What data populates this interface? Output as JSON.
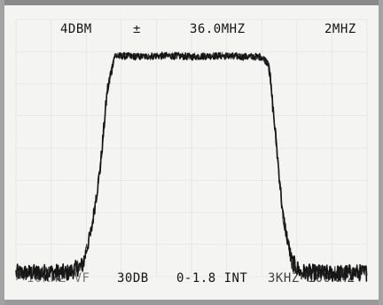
{
  "readouts": {
    "top_left": "4DBM",
    "top_marker": "±",
    "top_center": "36.0MHZ",
    "top_right": "2MHZ",
    "bottom_left": "10KHZ VF",
    "bottom_center_left": "30DB",
    "bottom_center": "0-1.8 INT",
    "bottom_right": "3KHZ 100KHZ"
  },
  "chart_data": {
    "type": "line",
    "title": "",
    "xlabel": "",
    "ylabel": "",
    "center_frequency_mhz": 36.0,
    "span_per_division_mhz": 2,
    "reference_level_dbm": 4,
    "scale_total_db": 30,
    "xlim": [
      26.0,
      46.0
    ],
    "ylim": [
      -30,
      0
    ],
    "grid": true,
    "series": [
      {
        "name": "",
        "x_mhz": [
          26.0,
          27.0,
          28.0,
          29.0,
          29.8,
          30.3,
          30.8,
          31.2,
          31.6,
          32.0,
          33.0,
          34.0,
          35.0,
          36.0,
          37.0,
          38.0,
          39.0,
          40.0,
          40.4,
          40.8,
          41.2,
          41.7,
          42.2,
          43.0,
          44.0,
          45.0,
          46.0
        ],
        "level_db": [
          -29.5,
          -29.5,
          -29.4,
          -29.5,
          -28.5,
          -24.0,
          -16.0,
          -6.0,
          -1.6,
          -1.5,
          -1.6,
          -1.5,
          -1.5,
          -1.6,
          -1.5,
          -1.5,
          -1.6,
          -1.6,
          -2.5,
          -12.0,
          -22.0,
          -28.0,
          -29.4,
          -29.5,
          -29.6,
          -29.5,
          -29.5
        ]
      }
    ]
  }
}
